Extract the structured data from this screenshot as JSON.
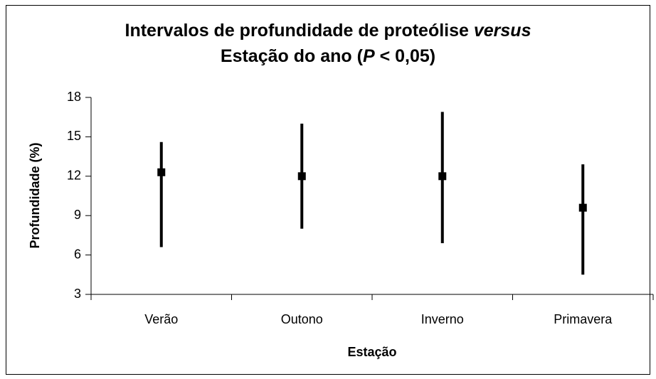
{
  "chart_data": {
    "type": "interval",
    "title": [
      [
        "Intervalos de profundidade de proteólise ",
        "versus"
      ],
      [
        "Estação do ano (",
        "P",
        " < 0,05)"
      ]
    ],
    "x_label": "Estação",
    "y_label": "Profundidade (%)",
    "categories": [
      "Verão",
      "Outono",
      "Inverno",
      "Primavera"
    ],
    "values": [
      12.3,
      12.0,
      12.0,
      9.6
    ],
    "low": [
      6.6,
      8.0,
      6.9,
      4.5
    ],
    "high": [
      14.6,
      16.0,
      16.9,
      12.9
    ],
    "color": "#000000",
    "ylim": [
      3,
      18
    ],
    "yticks": [
      3,
      6,
      9,
      12,
      15,
      18
    ]
  }
}
